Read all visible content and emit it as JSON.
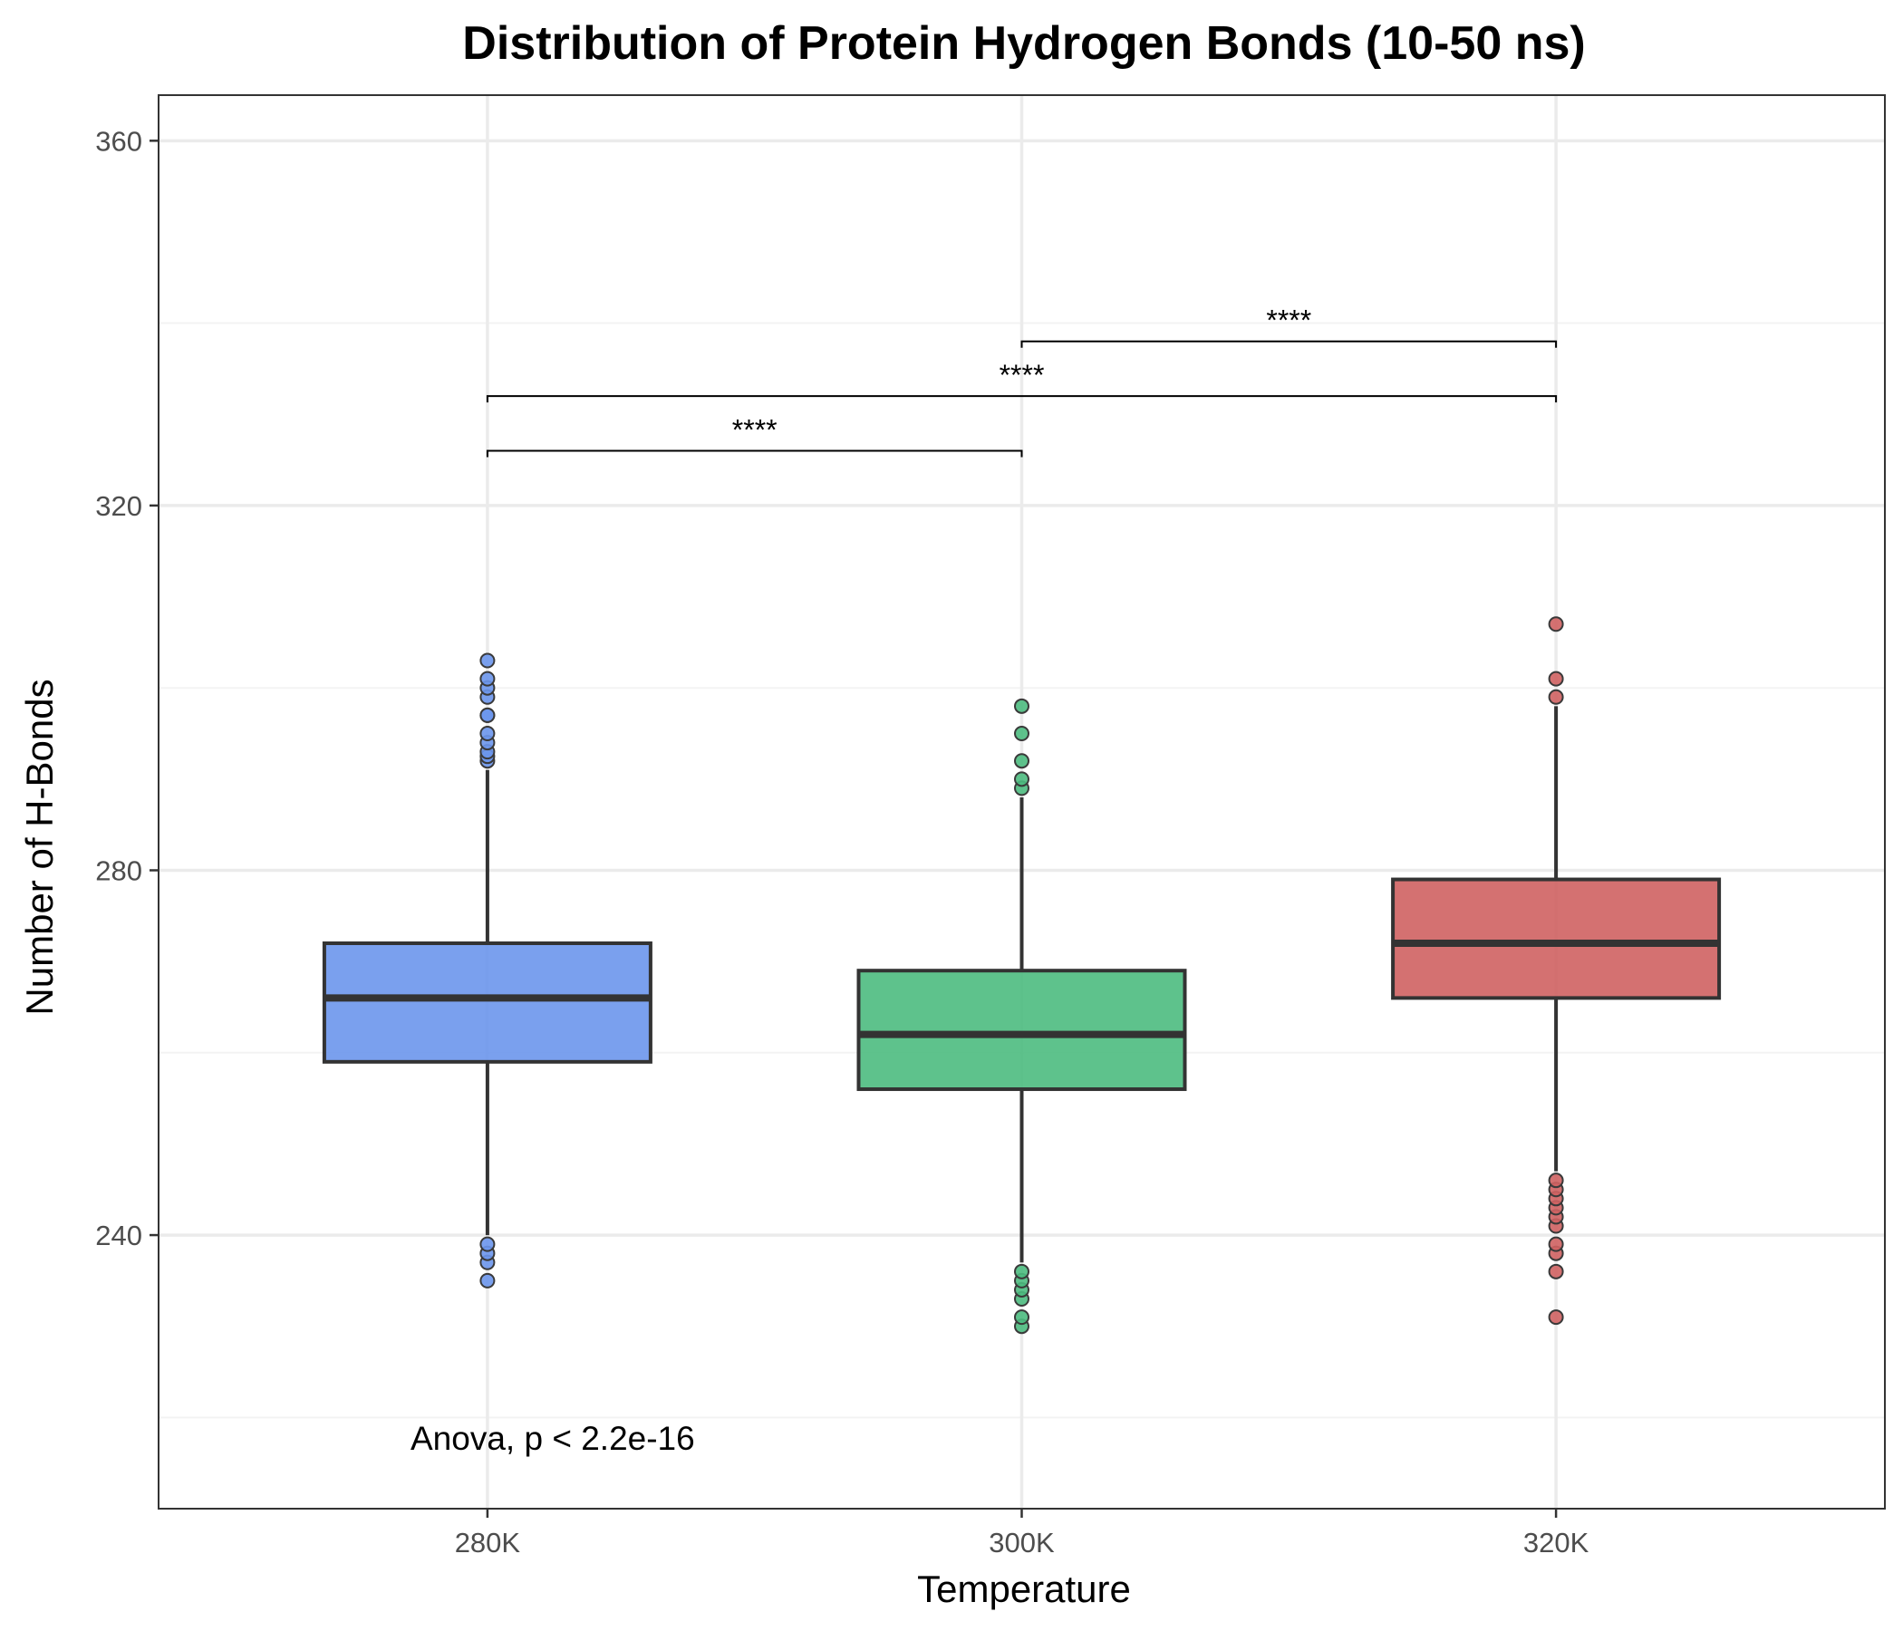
{
  "chart_data": {
    "type": "box",
    "title": "Distribution of Protein Hydrogen Bonds (10-50 ns)",
    "xlabel": "Temperature",
    "ylabel": "Number of H-Bonds",
    "ylim": [
      210,
      365
    ],
    "yticks": [
      240,
      280,
      320,
      360
    ],
    "y_minor_ticks": [
      220,
      260,
      300,
      340
    ],
    "grid": true,
    "categories": [
      "280K",
      "300K",
      "320K"
    ],
    "series": [
      {
        "category": "280K",
        "color": "#6b96ec",
        "q1": 259,
        "median": 266,
        "q3": 272,
        "whisker_low": 240,
        "whisker_high": 291,
        "outliers": [
          235,
          237,
          238,
          239,
          292,
          292.5,
          293,
          294,
          295,
          297,
          297,
          299,
          300,
          301,
          303
        ]
      },
      {
        "category": "300K",
        "color": "#4dbb7f",
        "q1": 256,
        "median": 262,
        "q3": 269,
        "whisker_low": 237,
        "whisker_high": 288,
        "outliers": [
          230,
          231,
          233,
          234,
          235,
          236,
          289,
          290,
          292,
          295,
          298
        ]
      },
      {
        "category": "320K",
        "color": "#cf6262",
        "q1": 266,
        "median": 272,
        "q3": 279,
        "whisker_low": 247,
        "whisker_high": 298,
        "outliers": [
          231,
          236,
          238,
          239,
          241,
          242,
          243,
          244,
          245,
          246,
          299,
          301,
          307
        ]
      }
    ],
    "comparisons": [
      {
        "from": "280K",
        "to": "300K",
        "y": 326,
        "label": "****"
      },
      {
        "from": "280K",
        "to": "320K",
        "y": 332,
        "label": "****"
      },
      {
        "from": "300K",
        "to": "320K",
        "y": 338,
        "label": "****"
      }
    ],
    "annotation": "Anova, p < 2.2e-16"
  },
  "style": {
    "box_edge_color": "#333333",
    "grid_major_color": "#ebebeb",
    "grid_minor_color": "#f3f3f3",
    "panel_border_color": "#333333",
    "outlier_edge_color": "#3a3a3a"
  }
}
